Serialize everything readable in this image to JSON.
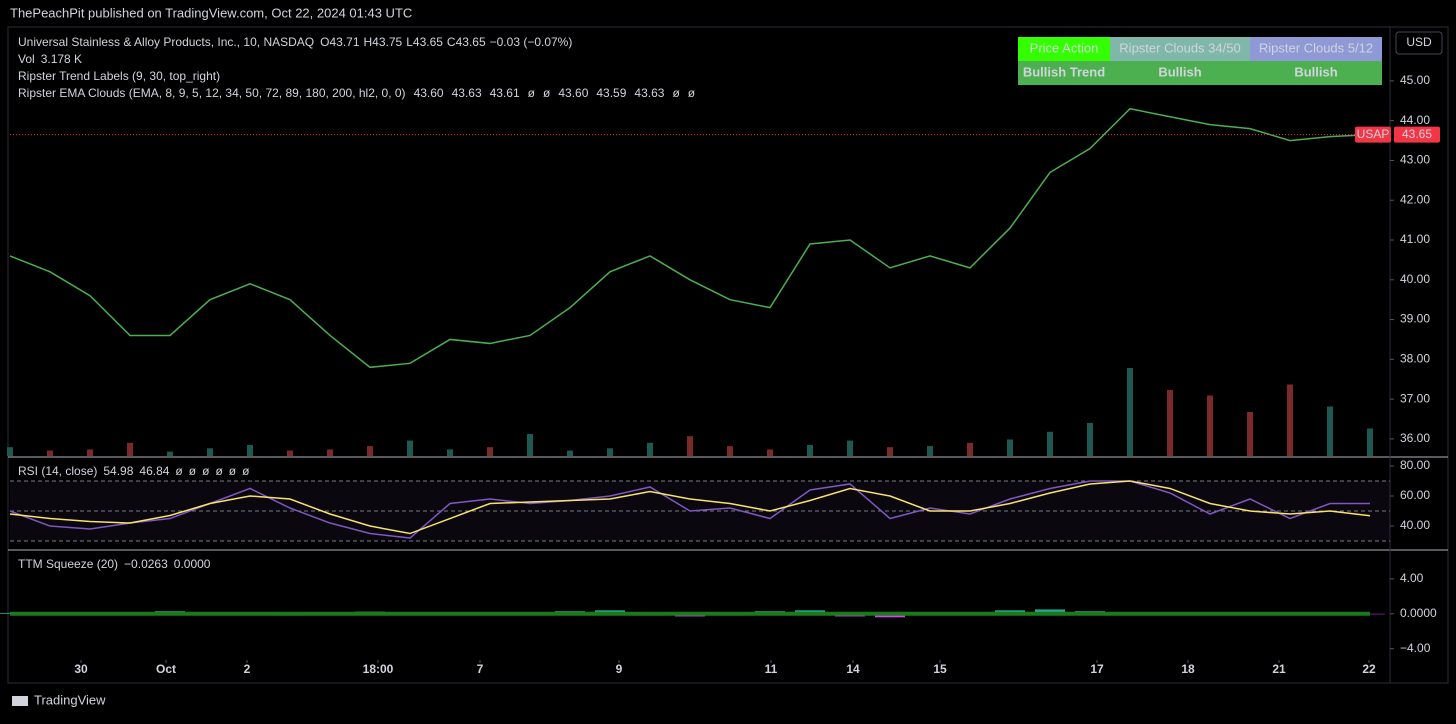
{
  "header": "ThePeachPit published on TradingView.com, Oct 22, 2024 01:43 UTC",
  "footer": "TradingView",
  "legend": {
    "title": "Universal Stainless & Alloy Products, Inc., 10, NASDAQ",
    "ohlc": [
      {
        "k": "O",
        "v": "43.71"
      },
      {
        "k": "H",
        "v": "43.75"
      },
      {
        "k": "L",
        "v": "43.65"
      },
      {
        "k": "C",
        "v": "43.65"
      }
    ],
    "change": "−0.03 (−0.07%)",
    "vol_label": "Vol",
    "vol": "3.178 K",
    "trend_labels": "Ripster Trend Labels (9, 30, top_right)",
    "ema_clouds": "Ripster EMA Clouds (EMA, 8, 9, 5, 12, 34, 50, 72, 89, 180, 200, hl2, 0, 0)",
    "ema_values": [
      "43.60",
      "43.63",
      "43.61",
      "ø",
      "ø",
      "43.60",
      "43.59",
      "43.63",
      "ø",
      "ø"
    ]
  },
  "table": {
    "headers": [
      "Price Action",
      "Ripster Clouds 34/50",
      "Ripster Clouds 5/12"
    ],
    "row": [
      "Bullish Trend",
      "Bullish",
      "Bullish"
    ]
  },
  "axis_unit": "USD",
  "last_price": {
    "symbol": "USAP",
    "value": 43.65
  },
  "chart_data": [
    {
      "type": "line",
      "color": "#4caf50",
      "x": [
        0,
        4,
        8,
        12,
        16,
        20,
        24,
        28,
        32,
        36,
        40,
        44,
        48,
        52,
        56,
        60,
        64,
        68,
        72,
        76,
        80,
        84,
        88,
        92,
        96,
        100,
        104,
        108,
        112,
        116,
        120,
        124,
        128,
        132,
        136
      ],
      "values": [
        40.6,
        40.2,
        39.6,
        38.6,
        38.6,
        39.5,
        39.9,
        39.5,
        38.6,
        37.8,
        37.9,
        38.5,
        38.4,
        38.6,
        39.3,
        40.2,
        40.6,
        40.0,
        39.5,
        39.3,
        40.9,
        41.0,
        40.3,
        40.6,
        40.3,
        41.3,
        42.7,
        43.3,
        44.3,
        44.1,
        43.9,
        43.8,
        43.5,
        43.6,
        43.65
      ],
      "volume": [
        8,
        5,
        6,
        12,
        4,
        7,
        10,
        5,
        6,
        9,
        14,
        6,
        8,
        20,
        5,
        7,
        12,
        18,
        9,
        6,
        10,
        14,
        8,
        9,
        12,
        15,
        22,
        30,
        80,
        60,
        55,
        40,
        65,
        45,
        25
      ],
      "vlim": [
        0,
        100
      ],
      "xlim": [
        0,
        138
      ],
      "ylim": [
        35.57,
        46.33
      ],
      "xticks": [
        {
          "value": 7.1,
          "label": "30"
        },
        {
          "value": 15.6,
          "label": "Oct"
        },
        {
          "value": 23.7,
          "label": "2"
        },
        {
          "value": 36.8,
          "label": "18:00"
        },
        {
          "value": 47,
          "label": "7"
        },
        {
          "value": 60.9,
          "label": "9"
        },
        {
          "value": 76.1,
          "label": "11"
        },
        {
          "value": 84.3,
          "label": "14"
        },
        {
          "value": 93,
          "label": "15"
        },
        {
          "value": 108.7,
          "label": "17"
        },
        {
          "value": 117.8,
          "label": "18"
        },
        {
          "value": 126.9,
          "label": "21"
        },
        {
          "value": 135.9,
          "label": "22"
        }
      ],
      "yticks": [
        {
          "value": 36,
          "label": "36.00"
        },
        {
          "value": 37,
          "label": "37.00"
        },
        {
          "value": 38,
          "label": "38.00"
        },
        {
          "value": 39,
          "label": "39.00"
        },
        {
          "value": 40,
          "label": "40.00"
        },
        {
          "value": 41,
          "label": "41.00"
        },
        {
          "value": 42,
          "label": "42.00"
        },
        {
          "value": 43,
          "label": "43.00"
        },
        {
          "value": 44,
          "label": "44.00"
        },
        {
          "value": 45,
          "label": "45.00"
        }
      ]
    },
    {
      "type": "line",
      "title": "RSI (14, close)",
      "x": [
        0,
        4,
        8,
        12,
        16,
        20,
        24,
        28,
        32,
        36,
        40,
        44,
        48,
        52,
        56,
        60,
        64,
        68,
        72,
        76,
        80,
        84,
        88,
        92,
        96,
        100,
        104,
        108,
        112,
        116,
        120,
        124,
        128,
        132,
        136
      ],
      "series": [
        {
          "color": "#7e57c2",
          "values": [
            50,
            40,
            38,
            42,
            45,
            55,
            65,
            52,
            42,
            35,
            32,
            55,
            58,
            55,
            57,
            60,
            66,
            50,
            52,
            45,
            64,
            68,
            45,
            52,
            48,
            58,
            65,
            70,
            70,
            62,
            48,
            58,
            45,
            55,
            54.98
          ]
        },
        {
          "color": "#f7e36b",
          "values": [
            48,
            45,
            43,
            42,
            47,
            55,
            60,
            58,
            48,
            40,
            35,
            45,
            55,
            56,
            57,
            58,
            63,
            58,
            55,
            50,
            57,
            65,
            60,
            50,
            50,
            55,
            62,
            68,
            70,
            65,
            55,
            50,
            48,
            50,
            46.84
          ]
        }
      ],
      "legend_values": [
        "ø",
        "ø",
        "ø",
        "ø",
        "ø",
        "ø"
      ],
      "bands": [
        70,
        50,
        30
      ],
      "xlim": [
        0,
        138
      ],
      "ylim": [
        24.7,
        85.3
      ],
      "yticks": [
        {
          "value": 40,
          "label": "40.00"
        },
        {
          "value": 60,
          "label": "60.00"
        },
        {
          "value": 80,
          "label": "80.00"
        }
      ]
    },
    {
      "type": "bar",
      "title": "TTM Squeeze (20)",
      "legend_values": [
        "−0.0263",
        "0.0000"
      ],
      "x": [
        0,
        4,
        8,
        12,
        16,
        20,
        24,
        28,
        32,
        36,
        40,
        44,
        48,
        52,
        56,
        60,
        64,
        68,
        72,
        76,
        80,
        84,
        88,
        92,
        96,
        100,
        104,
        108,
        112,
        116,
        120,
        124,
        128,
        132,
        136
      ],
      "values": [
        0.1,
        -0.1,
        -0.15,
        0.1,
        0.3,
        0.2,
        -0.1,
        -0.2,
        0.1,
        0.25,
        0.2,
        0.15,
        -0.1,
        0.2,
        0.3,
        0.4,
        -0.2,
        -0.3,
        -0.2,
        0.3,
        0.4,
        -0.3,
        -0.4,
        0.2,
        0.1,
        0.4,
        0.5,
        0.3,
        0.2,
        0.1,
        0.1,
        0.2,
        0.1,
        0.1,
        -0.03
      ],
      "color_pos": "#26a69a",
      "color_neg": "#e040fb",
      "xlim": [
        0,
        138
      ],
      "ylim": [
        -5.3,
        7.2
      ],
      "yticks": [
        {
          "value": -4,
          "label": "−4.00"
        },
        {
          "value": 0,
          "label": "0.0000"
        },
        {
          "value": 4,
          "label": "4.00"
        }
      ]
    }
  ]
}
